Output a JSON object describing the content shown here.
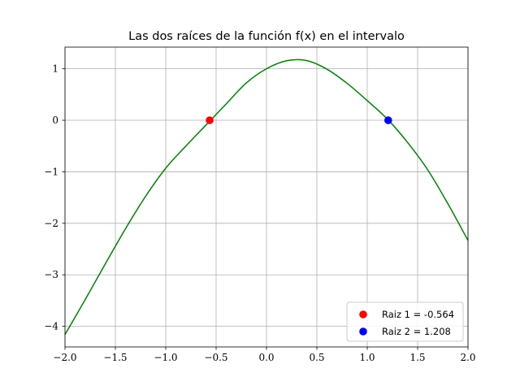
{
  "chart_data": {
    "type": "line",
    "title": "Las dos raíces de la función f(x) en el intervalo",
    "xlabel": "",
    "ylabel": "",
    "xlim": [
      -2.0,
      2.0
    ],
    "ylim": [
      -4.4,
      1.42
    ],
    "grid": true,
    "x_ticks": [
      {
        "value": -2.0,
        "label": "−2.0"
      },
      {
        "value": -1.5,
        "label": "−1.5"
      },
      {
        "value": -1.0,
        "label": "−1.0"
      },
      {
        "value": -0.5,
        "label": "−0.5"
      },
      {
        "value": 0.0,
        "label": "0.0"
      },
      {
        "value": 0.5,
        "label": "0.5"
      },
      {
        "value": 1.0,
        "label": "1.0"
      },
      {
        "value": 1.5,
        "label": "1.5"
      },
      {
        "value": 2.0,
        "label": "2.0"
      }
    ],
    "y_ticks": [
      {
        "value": 1,
        "label": "1"
      },
      {
        "value": 0,
        "label": "0"
      },
      {
        "value": -1,
        "label": "−1"
      },
      {
        "value": -2,
        "label": "−2"
      },
      {
        "value": -3,
        "label": "−3"
      },
      {
        "value": -4,
        "label": "−4"
      }
    ],
    "series": [
      {
        "color": "#008000",
        "x": [
          -2.0,
          -1.8,
          -1.6,
          -1.4,
          -1.2,
          -1.0,
          -0.8,
          -0.6,
          -0.4,
          -0.2,
          0.0,
          0.2,
          0.4,
          0.6,
          0.8,
          1.0,
          1.2,
          1.4,
          1.6,
          1.8,
          2.0
        ],
        "y": [
          -4.1592,
          -3.4823,
          -2.7871,
          -2.1066,
          -1.476,
          -0.9303,
          -0.5002,
          -0.0915,
          0.318,
          0.7247,
          1.0,
          1.1554,
          1.1583,
          0.9914,
          0.717,
          0.3818,
          0.0233,
          -0.4298,
          -0.9617,
          -1.6189,
          -2.3325
        ]
      },
      {
        "name": "Raiz 1 = -0.564",
        "color": "#ff0000",
        "marker": "o",
        "x": [
          -0.564
        ],
        "y": [
          0.0
        ]
      },
      {
        "name": "Raiz 2 = 1.208",
        "color": "#0000ff",
        "marker": "o",
        "x": [
          1.208
        ],
        "y": [
          0.0
        ]
      }
    ],
    "legend": {
      "position": "lower-right",
      "entries": [
        {
          "label": "Raiz 1 = -0.564",
          "color": "#ff0000"
        },
        {
          "label": "Raiz 2 = 1.208",
          "color": "#0000ff"
        }
      ]
    }
  }
}
